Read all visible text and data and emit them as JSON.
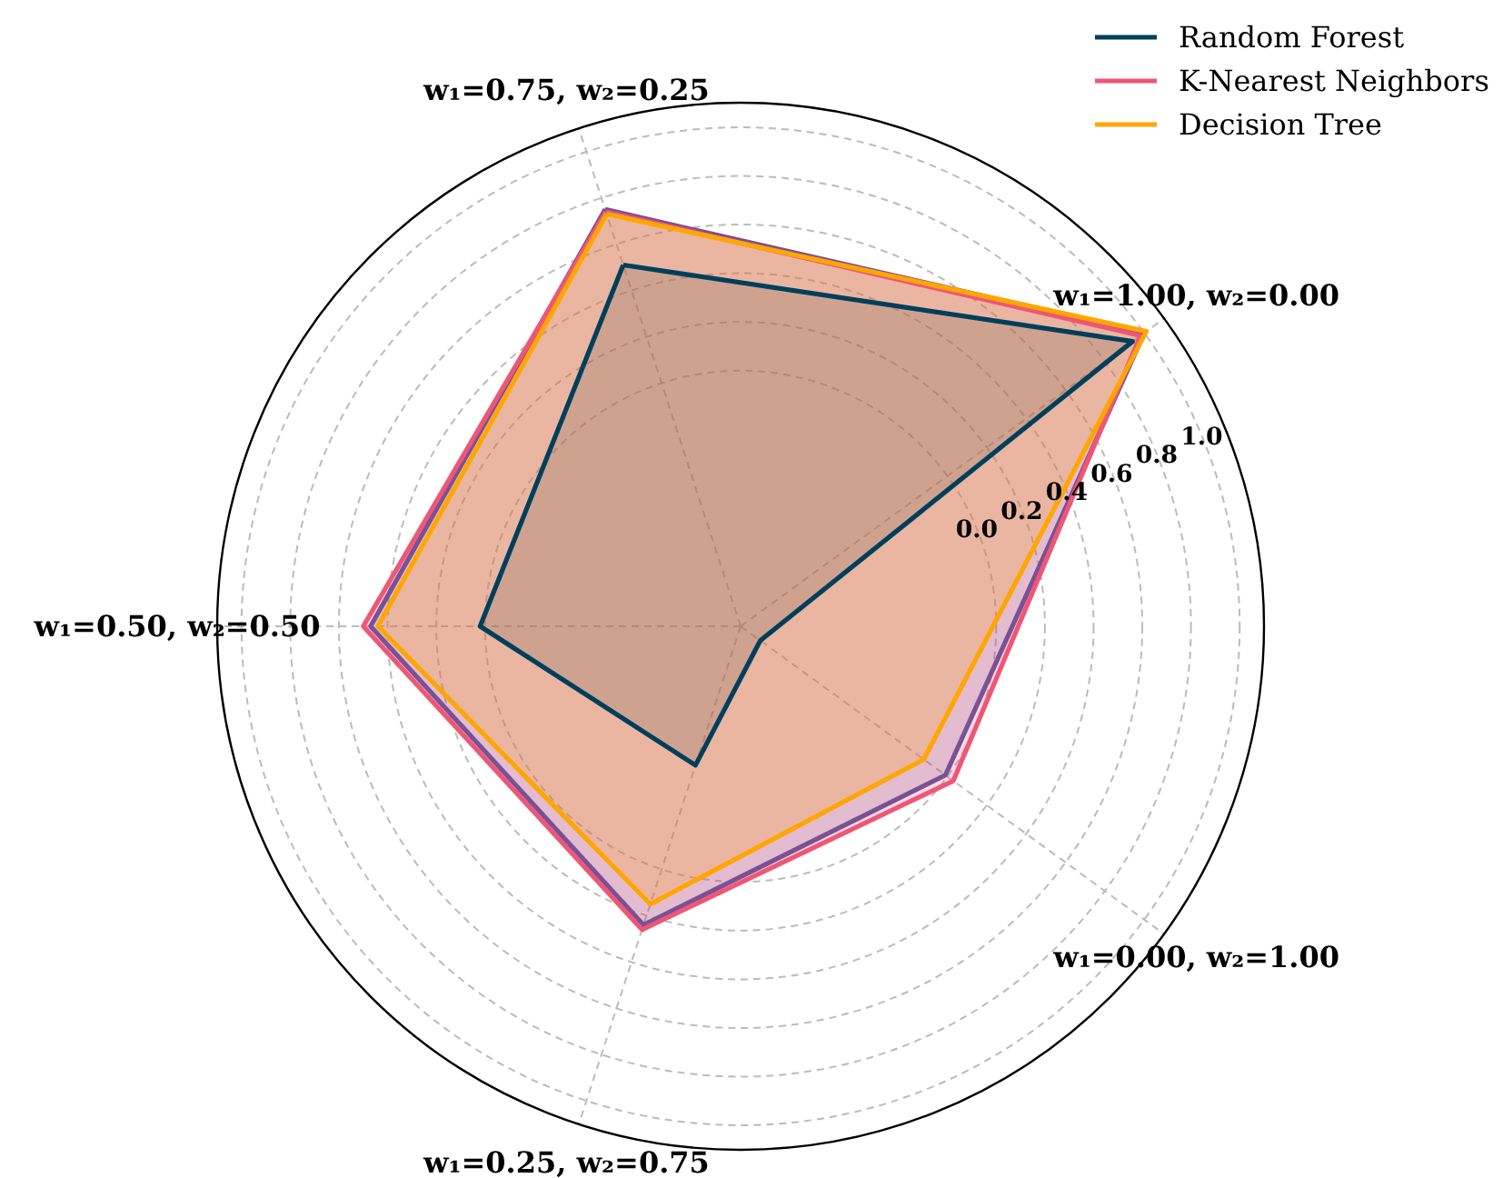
{
  "chart_data": {
    "type": "radar",
    "categories": [
      "w₁=0.75, w₂=0.25",
      "w₁=1.00, w₂=0.00",
      "w₁=0.00, w₂=1.00",
      "w₁=0.25, w₂=0.75",
      "w₁=0.50, w₂=0.50"
    ],
    "series": [
      {
        "name": "Random Forest",
        "color": "#003f5c",
        "values": [
          0.51,
          0.94,
          -0.95,
          -0.45,
          0.02
        ]
      },
      {
        "color": "#7a5195",
        "values": [
          0.75,
          1.0,
          -0.01,
          0.24,
          0.47
        ]
      },
      {
        "name": "K-Nearest Neighbors",
        "color": "#ef5675",
        "values": [
          0.74,
          0.98,
          0.03,
          0.26,
          0.5
        ]
      },
      {
        "name": "Decision Tree",
        "color": "#ffa600",
        "values": [
          0.73,
          1.01,
          -0.12,
          0.15,
          0.44
        ]
      }
    ],
    "ylim": [
      -1.05,
      1.1
    ],
    "yticks": [
      {
        "value": 0.0,
        "label": "0.0"
      },
      {
        "value": 0.2,
        "label": "0.2"
      },
      {
        "value": 0.4,
        "label": "0.4"
      },
      {
        "value": 0.6,
        "label": "0.6"
      },
      {
        "value": 0.8,
        "label": "0.8"
      },
      {
        "value": 1.0,
        "label": "1.0"
      }
    ],
    "grid": true,
    "legend": "top right"
  }
}
